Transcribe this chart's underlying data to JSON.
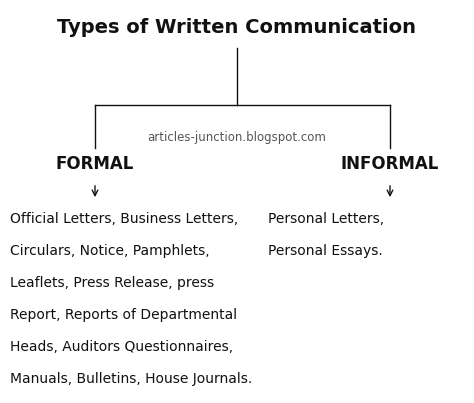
{
  "title": "Types of Written Communication",
  "title_fontsize": 14,
  "title_fontweight": "bold",
  "watermark": "articles-junction.blogspot.com",
  "watermark_fontsize": 8.5,
  "formal_label": "FORMAL",
  "informal_label": "INFORMAL",
  "label_fontsize": 12,
  "label_fontweight": "bold",
  "formal_lines": [
    "Official Letters, Business Letters,",
    "Circulars, Notice, Pamphlets,",
    "Leaflets, Press Release, press",
    "Report, Reports of Departmental",
    "Heads, Auditors Questionnaires,",
    "Manuals, Bulletins, House Journals."
  ],
  "informal_lines": [
    "Personal Letters,",
    "Personal Essays."
  ],
  "content_fontsize": 10,
  "bg_color": "#ffffff",
  "text_color": "#111111",
  "line_color": "#111111",
  "watermark_color": "#555555"
}
